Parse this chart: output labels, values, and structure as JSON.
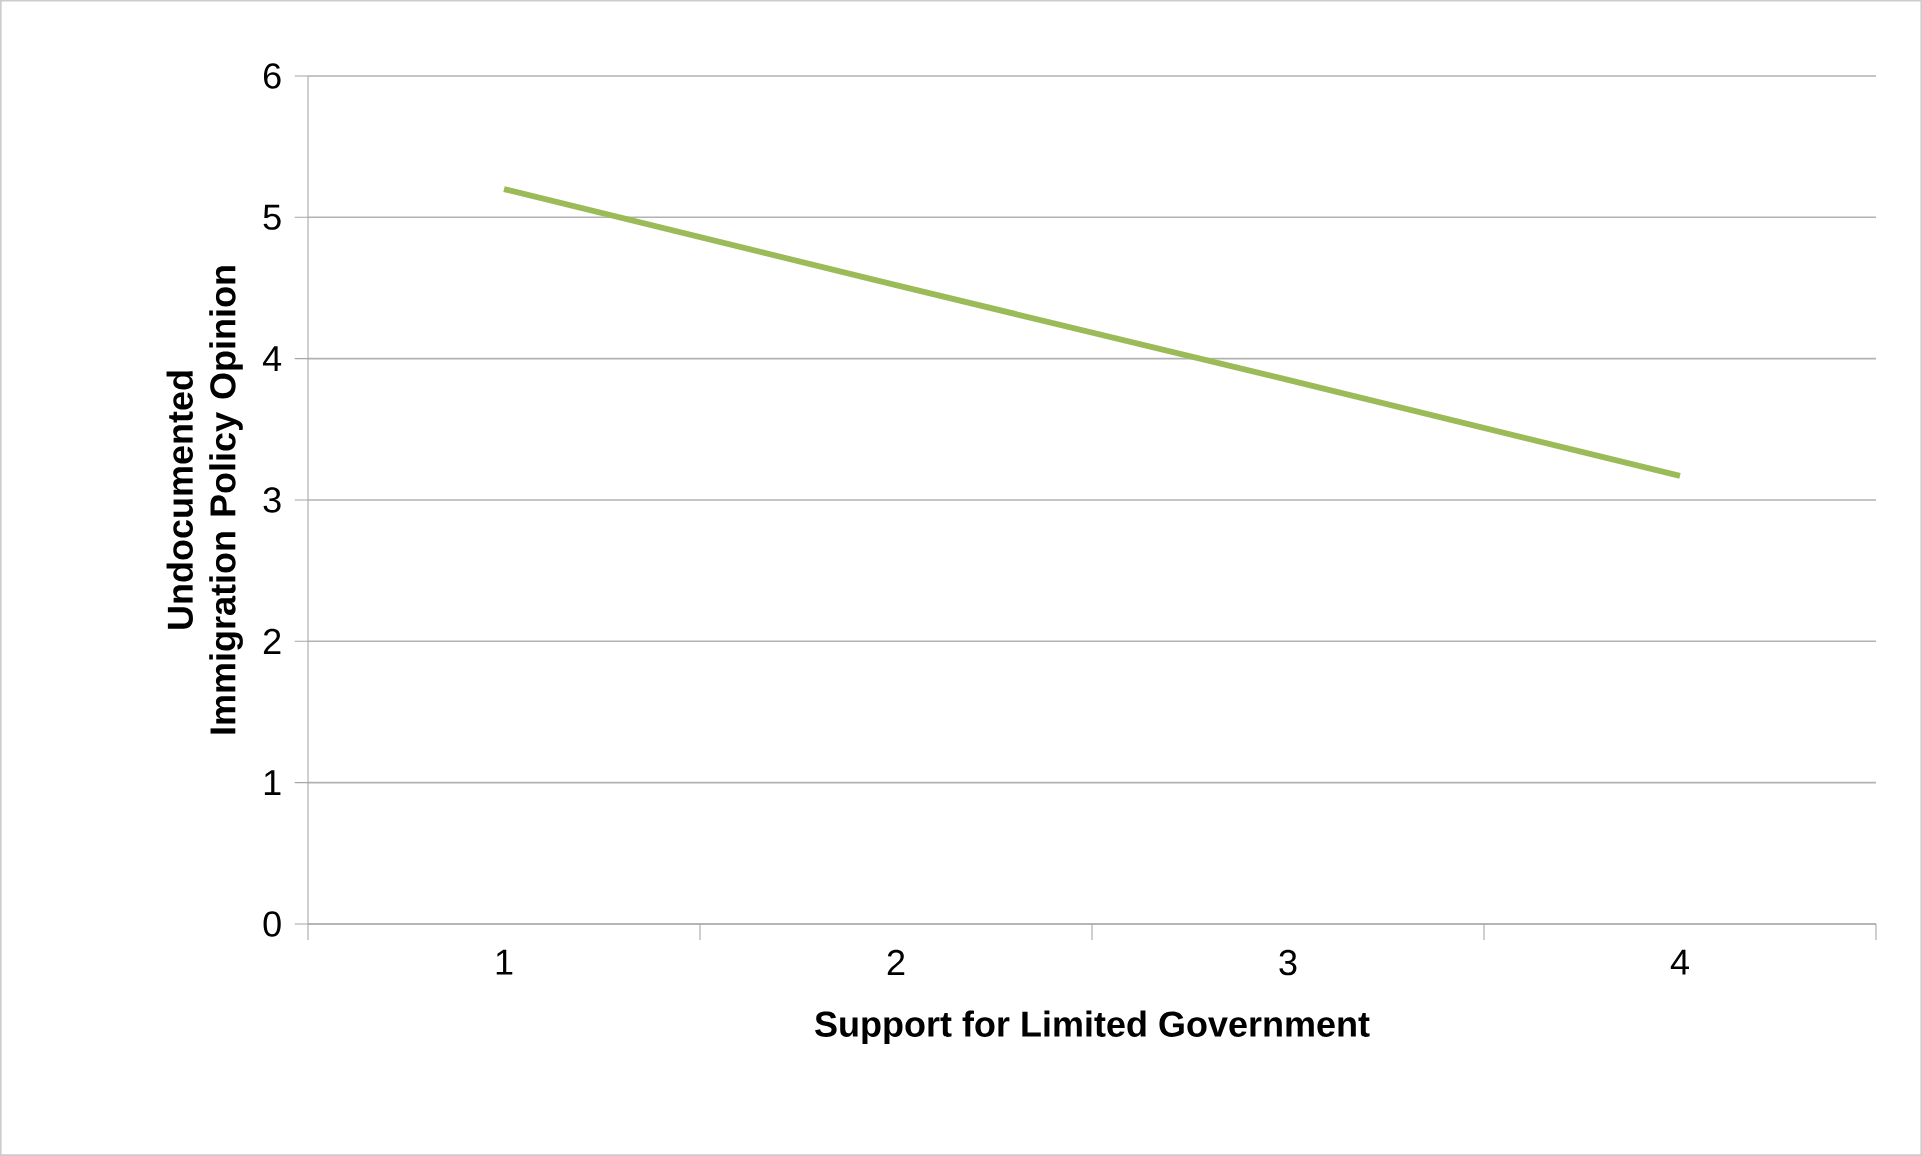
{
  "chart_data": {
    "type": "line",
    "xlabel": "Support for Limited Government",
    "ylabel": "Undocumented Immigration Policy Opinion",
    "categories": [
      "1",
      "2",
      "3",
      "4"
    ],
    "series": [
      {
        "color": "#9bbb59",
        "values": [
          5.2,
          4.52,
          3.85,
          3.17
        ]
      }
    ],
    "ylim": [
      0,
      6
    ],
    "yticks": [
      0,
      1,
      2,
      3,
      4,
      5,
      6
    ],
    "grid": "y",
    "marker": "none",
    "line_style": "solid"
  }
}
